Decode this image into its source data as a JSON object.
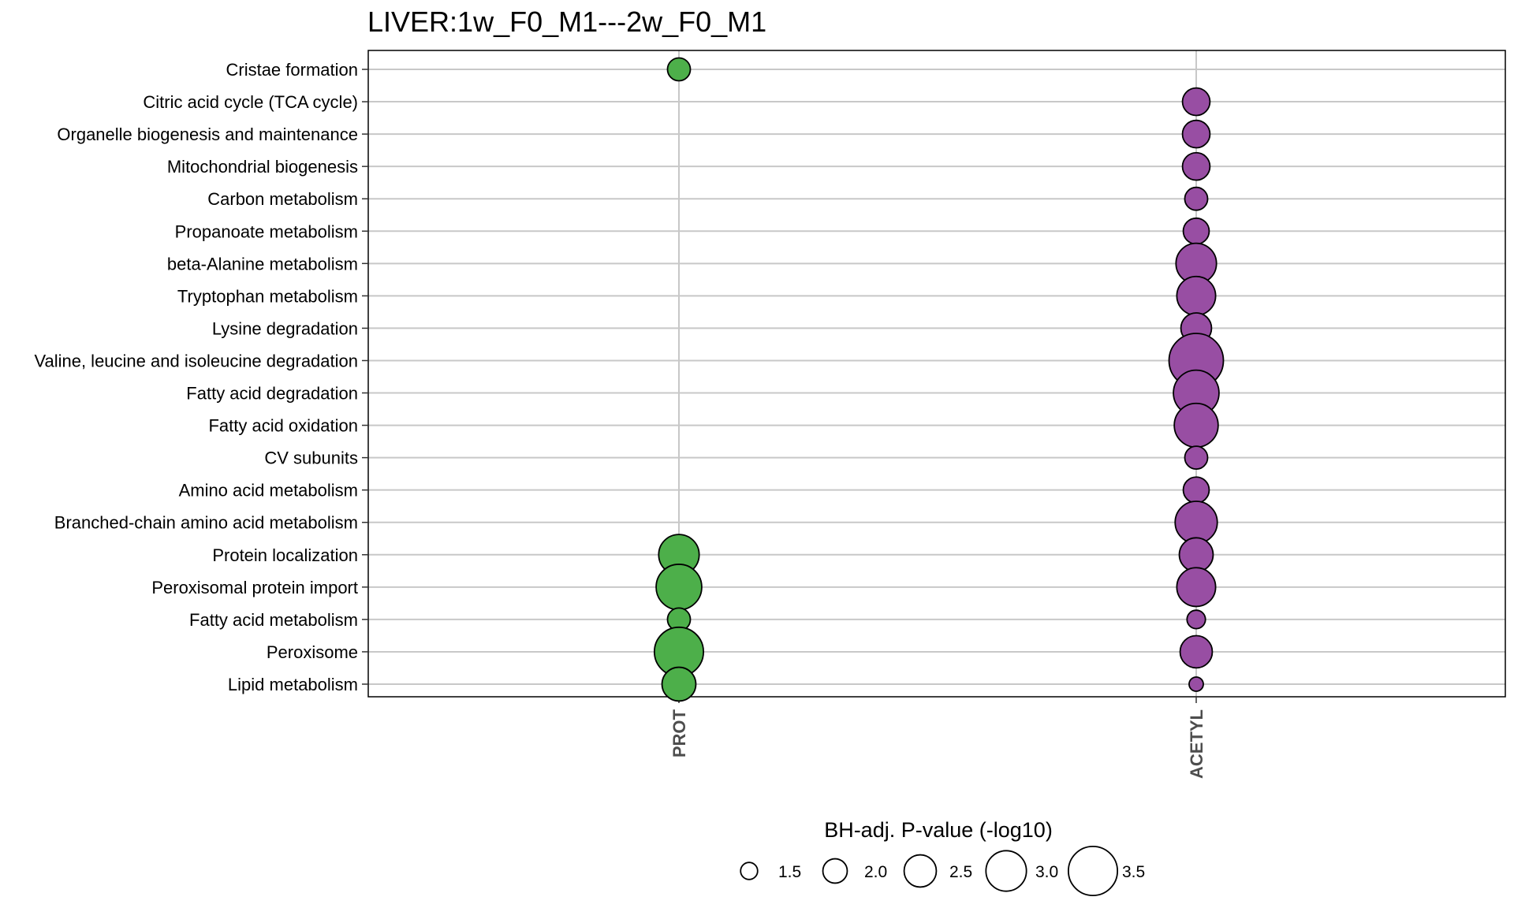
{
  "chart_data": {
    "type": "scatter",
    "title": "LIVER:1w_F0_M1---2w_F0_M1",
    "x_categories": [
      "PROT",
      "ACETYL"
    ],
    "y_categories": [
      "Cristae formation",
      "Citric acid cycle (TCA cycle)",
      "Organelle biogenesis and maintenance",
      "Mitochondrial biogenesis",
      "Carbon metabolism",
      "Propanoate metabolism",
      "beta-Alanine metabolism",
      "Tryptophan metabolism",
      "Lysine degradation",
      "Valine, leucine and isoleucine degradation",
      "Fatty acid degradation",
      "Fatty acid oxidation",
      "CV subunits",
      "Amino acid metabolism",
      "Branched-chain amino acid metabolism",
      "Protein localization",
      "Peroxisomal protein import",
      "Fatty acid metabolism",
      "Peroxisome",
      "Lipid metabolism"
    ],
    "series": [
      {
        "x": "PROT",
        "color": "#4daf4a",
        "points": [
          {
            "pathway": "Cristae formation",
            "value": 1.9
          },
          {
            "pathway": "Protein localization",
            "value": 3.0
          },
          {
            "pathway": "Peroxisomal protein import",
            "value": 3.3
          },
          {
            "pathway": "Fatty acid metabolism",
            "value": 1.9
          },
          {
            "pathway": "Peroxisome",
            "value": 3.5
          },
          {
            "pathway": "Lipid metabolism",
            "value": 2.6
          }
        ]
      },
      {
        "x": "ACETYL",
        "color": "#984ea3",
        "points": [
          {
            "pathway": "Citric acid cycle (TCA cycle)",
            "value": 2.2
          },
          {
            "pathway": "Organelle biogenesis and maintenance",
            "value": 2.2
          },
          {
            "pathway": "Mitochondrial biogenesis",
            "value": 2.2
          },
          {
            "pathway": "Carbon metabolism",
            "value": 1.9
          },
          {
            "pathway": "Propanoate metabolism",
            "value": 2.1
          },
          {
            "pathway": "beta-Alanine metabolism",
            "value": 3.0
          },
          {
            "pathway": "Tryptophan metabolism",
            "value": 2.9
          },
          {
            "pathway": "Lysine degradation",
            "value": 2.4
          },
          {
            "pathway": "Valine, leucine and isoleucine degradation",
            "value": 3.8
          },
          {
            "pathway": "Fatty acid degradation",
            "value": 3.3
          },
          {
            "pathway": "Fatty acid oxidation",
            "value": 3.2
          },
          {
            "pathway": "CV subunits",
            "value": 1.9
          },
          {
            "pathway": "Amino acid metabolism",
            "value": 2.1
          },
          {
            "pathway": "Branched-chain amino acid metabolism",
            "value": 3.1
          },
          {
            "pathway": "Protein localization",
            "value": 2.6
          },
          {
            "pathway": "Peroxisomal protein import",
            "value": 2.9
          },
          {
            "pathway": "Fatty acid metabolism",
            "value": 1.6
          },
          {
            "pathway": "Peroxisome",
            "value": 2.5
          },
          {
            "pathway": "Lipid metabolism",
            "value": 1.3
          }
        ]
      }
    ],
    "size_legend": {
      "title": "BH-adj. P-value (-log10)",
      "values": [
        1.5,
        2.0,
        2.5,
        3.0,
        3.5
      ],
      "labels": [
        "1.5",
        "2.0",
        "2.5",
        "3.0",
        "3.5"
      ],
      "placement": "bottom"
    },
    "grid": true
  }
}
